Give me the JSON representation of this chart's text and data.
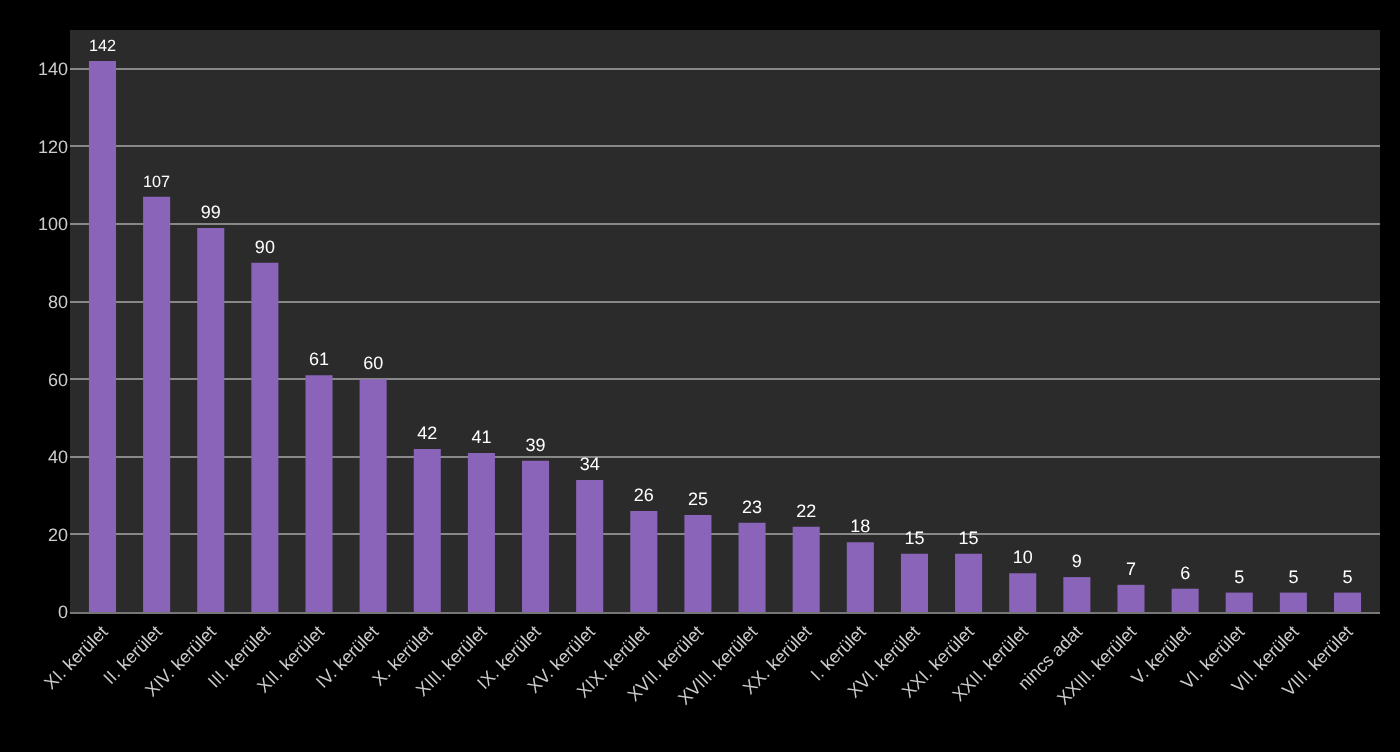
{
  "chart_data": {
    "type": "bar",
    "categories": [
      "XI. kerület",
      "II. kerület",
      "XIV. kerület",
      "III. kerület",
      "XII. kerület",
      "IV. kerület",
      "X. kerület",
      "XIII. kerület",
      "IX. kerület",
      "XV. kerület",
      "XIX. kerület",
      "XVII. kerület",
      "XVIII. kerület",
      "XX. kerület",
      "I. kerület",
      "XVI. kerület",
      "XXI. kerület",
      "XXII. kerület",
      "nincs adat",
      "XXIII. kerület",
      "V. kerület",
      "VI. kerület",
      "VII. kerület",
      "VIII. kerület"
    ],
    "values": [
      142,
      107,
      99,
      90,
      61,
      60,
      42,
      41,
      39,
      34,
      26,
      25,
      23,
      22,
      18,
      15,
      15,
      10,
      9,
      7,
      6,
      5,
      5,
      5
    ],
    "color": "#8a64b8",
    "ylim": [
      0,
      150
    ],
    "yticks": [
      0,
      20,
      40,
      60,
      80,
      100,
      120,
      140
    ],
    "grid": "y",
    "data_labels": true
  }
}
